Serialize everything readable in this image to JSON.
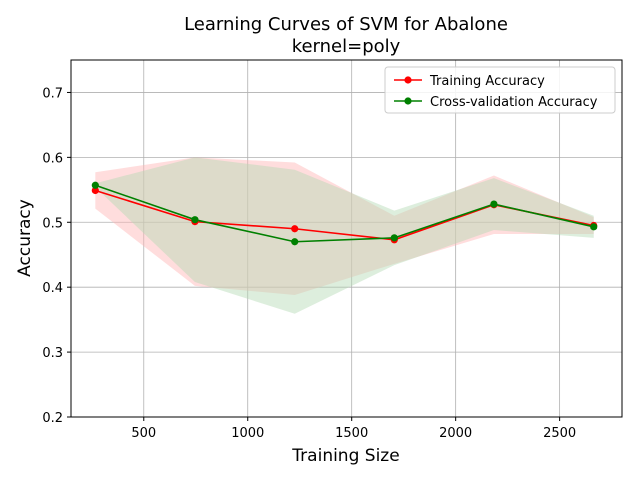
{
  "chart_data": {
    "type": "line",
    "title": "Learning Curves of SVM for Abalone",
    "subtitle": "kernel=poly",
    "xlabel": "Training Size",
    "ylabel": "Accuracy",
    "xlim": [
      150,
      2800
    ],
    "ylim": [
      0.2,
      0.75
    ],
    "xticks": [
      500,
      1000,
      1500,
      2000,
      2500
    ],
    "yticks": [
      0.2,
      0.3,
      0.4,
      0.5,
      0.6,
      0.7
    ],
    "xtick_labels": [
      "500",
      "1000",
      "1500",
      "2000",
      "2500"
    ],
    "ytick_labels": [
      "0.2",
      "0.3",
      "0.4",
      "0.5",
      "0.6",
      "0.7"
    ],
    "grid": true,
    "legend_position": "top-right",
    "x": [
      267,
      746,
      1226,
      1705,
      2184,
      2664
    ],
    "series": [
      {
        "name": "Training Accuracy",
        "color": "#ff0000",
        "band_color": "#ffb3b3",
        "values": [
          0.549,
          0.501,
          0.49,
          0.473,
          0.527,
          0.495
        ],
        "upper": [
          0.577,
          0.6,
          0.592,
          0.51,
          0.572,
          0.508
        ],
        "lower": [
          0.521,
          0.402,
          0.388,
          0.436,
          0.482,
          0.482
        ]
      },
      {
        "name": "Cross-validation Accuracy",
        "color": "#008000",
        "band_color": "#b3d9b3",
        "values": [
          0.557,
          0.504,
          0.47,
          0.476,
          0.528,
          0.493
        ],
        "upper": [
          0.56,
          0.6,
          0.581,
          0.518,
          0.568,
          0.51
        ],
        "lower": [
          0.554,
          0.408,
          0.359,
          0.434,
          0.488,
          0.476
        ]
      }
    ]
  }
}
